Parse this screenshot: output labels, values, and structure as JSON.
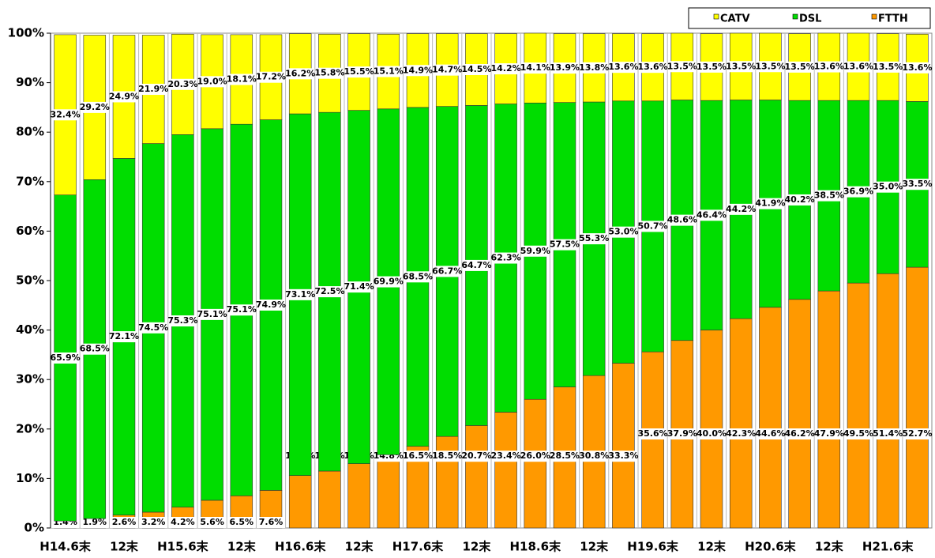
{
  "chart_data": {
    "type": "stacked_bar",
    "categories": [
      "H14.6末",
      null,
      "12末",
      null,
      "H15.6末",
      null,
      "12末",
      null,
      "H16.6末",
      null,
      "12末",
      null,
      "H17.6末",
      null,
      "12末",
      null,
      "H18.6末",
      null,
      "12末",
      null,
      "H19.6末",
      null,
      "12末",
      null,
      "H20.6末",
      null,
      "12末",
      null,
      "H21.6末",
      null
    ],
    "series": [
      {
        "name": "FTTH",
        "color": "#ff9900",
        "values": [
          1.4,
          1.9,
          2.6,
          3.2,
          4.2,
          5.6,
          6.5,
          7.6,
          10.6,
          11.5,
          13.0,
          14.8,
          16.5,
          18.5,
          20.7,
          23.4,
          26.0,
          28.5,
          30.8,
          33.3,
          35.6,
          37.9,
          40.0,
          42.3,
          44.6,
          46.2,
          47.9,
          49.5,
          51.4,
          52.7
        ],
        "value_labels": [
          "1.4%",
          "1.9%",
          "2.6%",
          "3.2%",
          "4.2%",
          "5.6%",
          "6.5%",
          "7.6%",
          "10.6%",
          "11.5%",
          "13.0%",
          "14.8%",
          "16.5%",
          "18.5%",
          "20.7%",
          "23.4%",
          "26.0%",
          "28.5%",
          "30.8%",
          "33.3%",
          "35.6%",
          "37.9%",
          "40.0%",
          "42.3%",
          "44.6%",
          "46.2%",
          "47.9%",
          "49.5%",
          "51.4%",
          "52.7%"
        ]
      },
      {
        "name": "DSL",
        "color": "#00dd00",
        "values": [
          65.9,
          68.5,
          72.1,
          74.5,
          75.3,
          75.1,
          75.1,
          74.9,
          73.1,
          72.5,
          71.4,
          69.9,
          68.5,
          66.7,
          64.7,
          62.3,
          59.9,
          57.5,
          55.3,
          53.0,
          50.7,
          48.6,
          46.4,
          44.2,
          41.9,
          40.2,
          38.5,
          36.9,
          35.0,
          33.5
        ],
        "value_labels": [
          "65.9%",
          "68.5%",
          "72.1%",
          "74.5%",
          "75.3%",
          "75.1%",
          "75.1%",
          "74.9%",
          "73.1%",
          "72.5%",
          "71.4%",
          "69.9%",
          "68.5%",
          "66.7%",
          "64.7%",
          "62.3%",
          "59.9%",
          "57.5%",
          "55.3%",
          "53.0%",
          "50.7%",
          "48.6%",
          "46.4%",
          "44.2%",
          "41.9%",
          "40.2%",
          "38.5%",
          "36.9%",
          "35.0%",
          "33.5%"
        ]
      },
      {
        "name": "CATV",
        "color": "#ffff00",
        "values": [
          32.4,
          29.2,
          24.9,
          21.9,
          20.3,
          19.0,
          18.1,
          17.2,
          16.2,
          15.8,
          15.5,
          15.1,
          14.9,
          14.7,
          14.5,
          14.2,
          14.1,
          13.9,
          13.8,
          13.6,
          13.6,
          13.5,
          13.5,
          13.5,
          13.5,
          13.5,
          13.6,
          13.6,
          13.5,
          13.6
        ],
        "value_labels": [
          "32.4%",
          "29.2%",
          "24.9%",
          "21.9%",
          "20.3%",
          "19.0%",
          "18.1%",
          "17.2%",
          "16.2%",
          "15.8%",
          "15.5%",
          "15.1%",
          "14.9%",
          "14.7%",
          "14.5%",
          "14.2%",
          "14.1%",
          "13.9%",
          "13.8%",
          "13.6%",
          "13.6%",
          "13.5%",
          "13.5%",
          "13.5%",
          "13.5%",
          "13.5%",
          "13.6%",
          "13.6%",
          "13.5%",
          "13.6%"
        ]
      }
    ],
    "ylim": [
      0,
      100
    ],
    "yticks": [
      {
        "value": 0,
        "label": "0%"
      },
      {
        "value": 10,
        "label": "10%"
      },
      {
        "value": 20,
        "label": "20%"
      },
      {
        "value": 30,
        "label": "30%"
      },
      {
        "value": 40,
        "label": "40%"
      },
      {
        "value": 50,
        "label": "50%"
      },
      {
        "value": 60,
        "label": "60%"
      },
      {
        "value": 70,
        "label": "70%"
      },
      {
        "value": 80,
        "label": "80%"
      },
      {
        "value": 90,
        "label": "90%"
      },
      {
        "value": 100,
        "label": "100%"
      }
    ],
    "legend_order": [
      "CATV",
      "DSL",
      "FTTH"
    ]
  }
}
